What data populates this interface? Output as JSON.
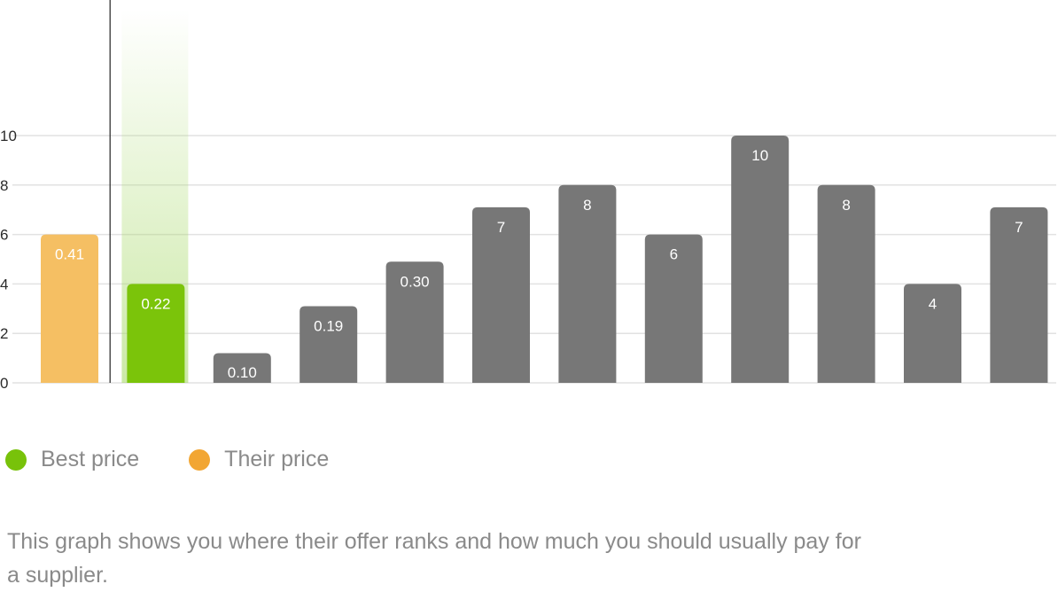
{
  "chart_data": {
    "type": "bar",
    "y_ticks": [
      0,
      2,
      4,
      6,
      8,
      10
    ],
    "ylim": [
      0,
      10
    ],
    "grid": true,
    "legend_placement": "bottom-left",
    "bars": [
      {
        "value": 6,
        "label": "0.41",
        "kind": "their"
      },
      {
        "value": 4,
        "label": "0.22",
        "kind": "best"
      },
      {
        "value": 1.2,
        "label": "0.10",
        "kind": "other"
      },
      {
        "value": 3.1,
        "label": "0.19",
        "kind": "other"
      },
      {
        "value": 4.9,
        "label": "0.30",
        "kind": "other"
      },
      {
        "value": 7.1,
        "label": "7",
        "kind": "other"
      },
      {
        "value": 8,
        "label": "8",
        "kind": "other"
      },
      {
        "value": 6,
        "label": "6",
        "kind": "other"
      },
      {
        "value": 10,
        "label": "10",
        "kind": "other"
      },
      {
        "value": 8,
        "label": "8",
        "kind": "other"
      },
      {
        "value": 4,
        "label": "4",
        "kind": "other"
      },
      {
        "value": 7.1,
        "label": "7",
        "kind": "other"
      }
    ]
  },
  "colors": {
    "their": "#f5bf63",
    "best": "#7bc40a",
    "other": "#777777",
    "grid": "#e2e2e2",
    "highlight": "#a9da6c",
    "legend_best": "#78c20a",
    "legend_their": "#f2a633"
  },
  "legend": {
    "best": "Best price",
    "their": "Their price"
  },
  "caption": "This graph shows you where their offer ranks and how much you should usually pay for a supplier."
}
